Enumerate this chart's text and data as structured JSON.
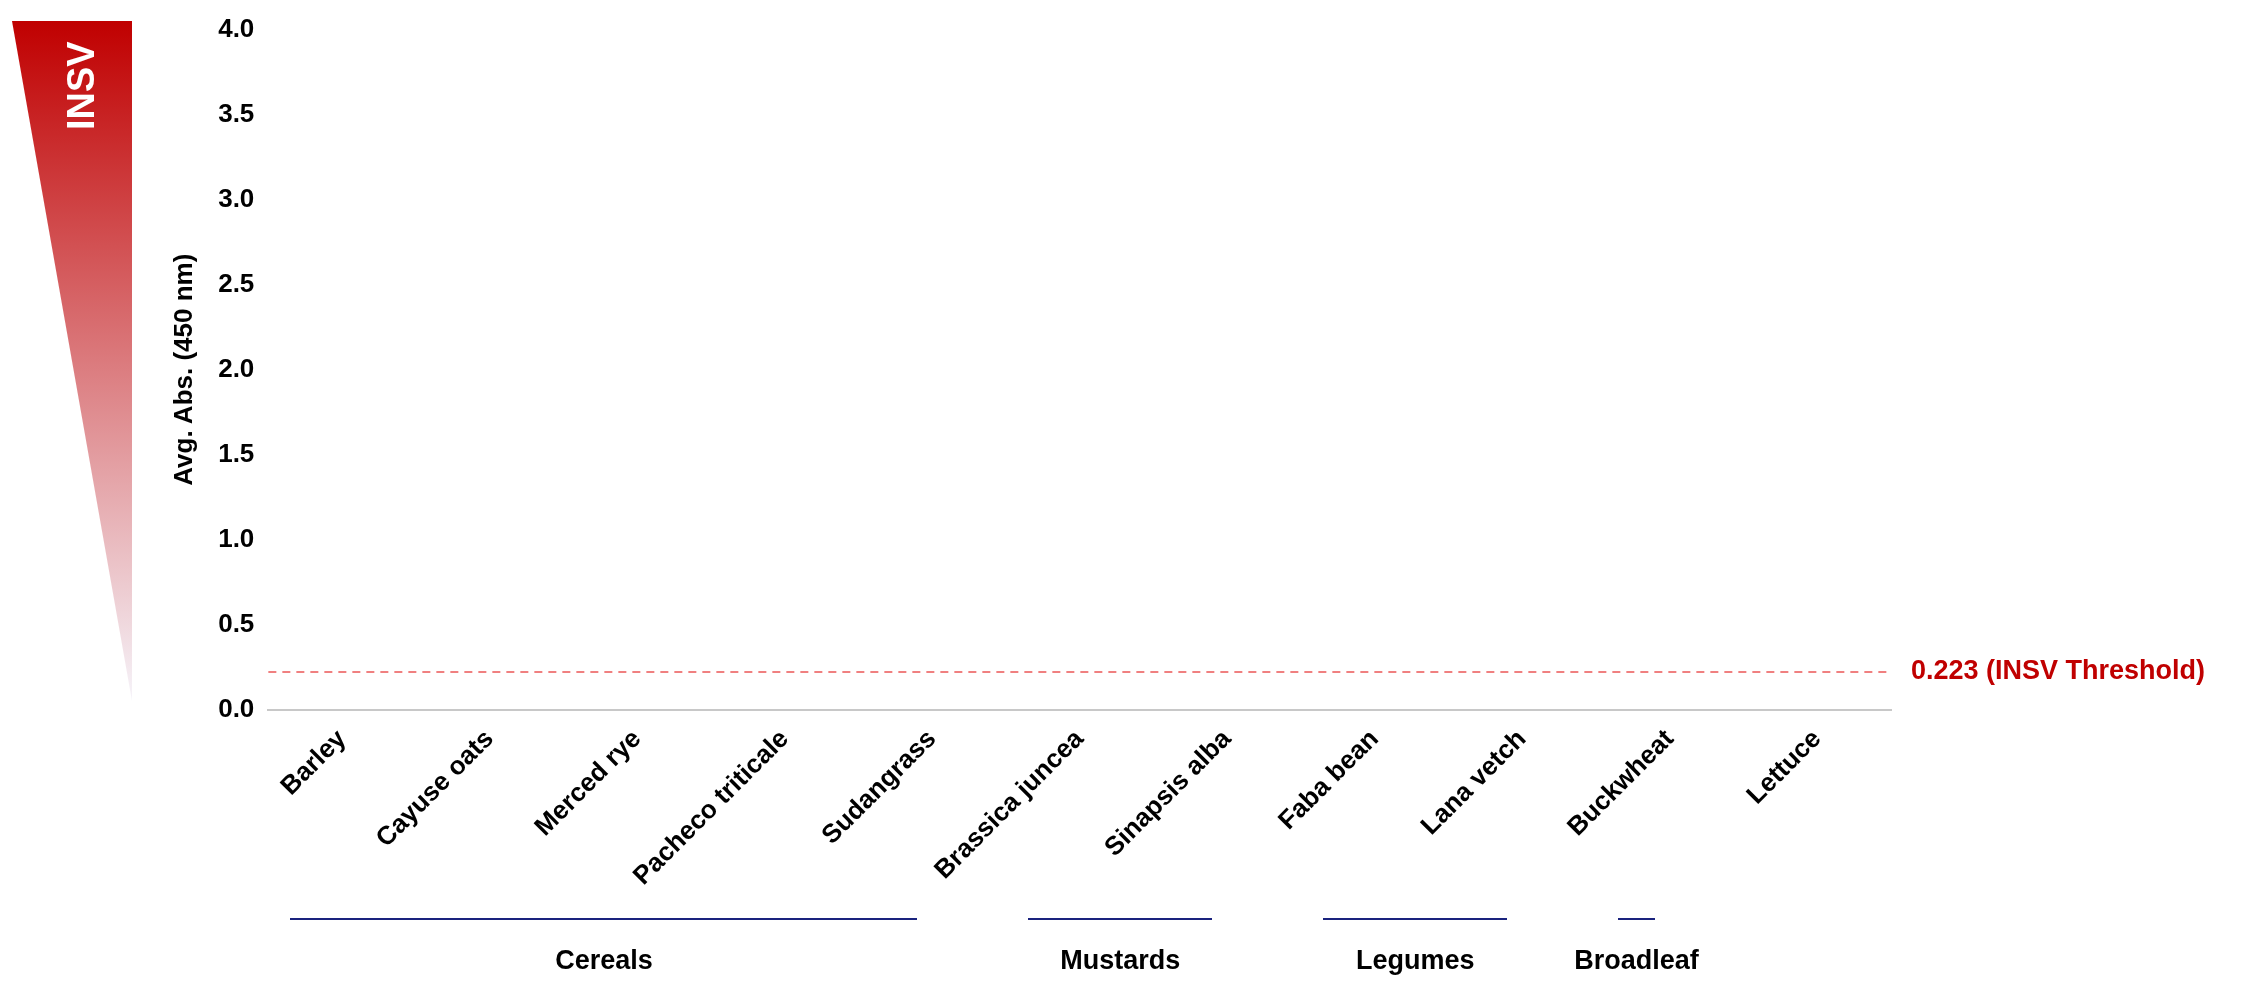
{
  "chart_data": {
    "type": "bar",
    "ylabel": "Avg. Abs. (450 nm)",
    "categories": [
      "Barley",
      "Cayuse oats",
      "Merced rye",
      "Pacheco triticale",
      "Sudangrass",
      "Brassica juncea",
      "Sinapsis alba",
      "Faba bean",
      "Lana vetch",
      "Buckwheat",
      "Lettuce"
    ],
    "values": [
      null,
      null,
      null,
      null,
      null,
      null,
      null,
      null,
      null,
      null,
      null
    ],
    "ylim": [
      0,
      4
    ],
    "yticks": [
      {
        "value": 0,
        "label": "0.0"
      },
      {
        "value": 0.5,
        "label": "0.5"
      },
      {
        "value": 1,
        "label": "1.0"
      },
      {
        "value": 1.5,
        "label": "1.5"
      },
      {
        "value": 2,
        "label": "2.0"
      },
      {
        "value": 2.5,
        "label": "2.5"
      },
      {
        "value": 3,
        "label": "3.0"
      },
      {
        "value": 3.5,
        "label": "3.5"
      },
      {
        "value": 4,
        "label": "4.0"
      }
    ],
    "ref_lines": [
      {
        "axis": "y",
        "value": 0.223,
        "label": "0.223 (INSV Threshold)",
        "color": "#f08080",
        "line_style": "dashed"
      }
    ],
    "annotations": [
      "INSV",
      "Cereals",
      "Mustards",
      "Legumes",
      "Broadleaf"
    ],
    "grid": false,
    "legend": false
  }
}
